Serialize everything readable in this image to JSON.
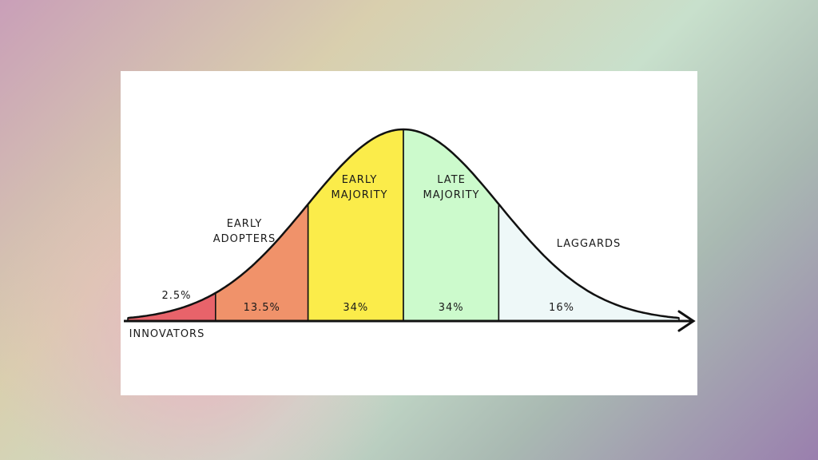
{
  "chart_data": {
    "type": "bell",
    "categories": [
      "INNOVATORS",
      "EARLY ADOPTERS",
      "EARLY MAJORITY",
      "LATE MAJORITY",
      "LAGGARDS"
    ],
    "values": [
      2.5,
      13.5,
      34,
      34,
      16
    ],
    "value_labels": [
      "2.5%",
      "13.5%",
      "34%",
      "34%",
      "16%"
    ],
    "colors": [
      "#e8636a",
      "#f0926a",
      "#fbec4a",
      "#ccfacc",
      "#eef8f8"
    ]
  }
}
